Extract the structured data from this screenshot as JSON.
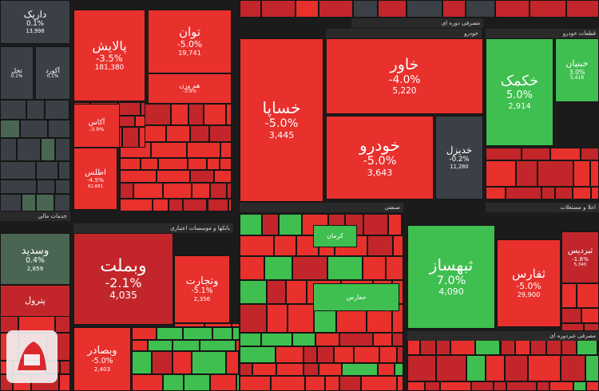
{
  "sections": [
    "مصرفی دوره ای",
    "خودرو",
    "قطعات خودرو",
    "خدمات مالی",
    "بانکها و موسسات اعتباری",
    "اعلا و مستغلات",
    "صنعتی",
    "مصرفی غیردوره ای"
  ],
  "tiles": [
    {
      "label": "داریک",
      "change": "0.1%",
      "price": "13,998"
    },
    {
      "label": "تخل",
      "change": "0.1%"
    },
    {
      "label": "آکورد",
      "change": "0.1%"
    },
    {
      "label": "پالایش",
      "change": "-3.5%",
      "price": "181,380"
    },
    {
      "label": "توان",
      "change": "-5.0%",
      "price": "19,741"
    },
    {
      "label": "هم وزن",
      "change": "-3.8%"
    },
    {
      "label": "آکاس",
      "change": "-3.9%"
    },
    {
      "label": "اطلس",
      "change": "-4.5%",
      "price": "62,681"
    },
    {
      "label": "خساپا",
      "change": "-5.0%",
      "price": "3,445"
    },
    {
      "label": "خاور",
      "change": "-4.0%",
      "price": "5,220"
    },
    {
      "label": "خودرو",
      "change": "-5.0%",
      "price": "3,643"
    },
    {
      "label": "خدیزل",
      "change": "-0.2%",
      "price": "11,280"
    },
    {
      "label": "خکمک",
      "change": "5.0%",
      "price": "2,914"
    },
    {
      "label": "خبنیان",
      "change": "3.0%",
      "price": "5,418"
    },
    {
      "label": "وسدید",
      "change": "0.4%",
      "price": "2,859"
    },
    {
      "label": "وبملت",
      "change": "-2.1%",
      "price": "4,035"
    },
    {
      "label": "وتجارت",
      "change": "-5.1%",
      "price": "2,356"
    },
    {
      "label": "وبصادر",
      "change": "-5.0%",
      "price": "2,403"
    },
    {
      "label": "پترول"
    },
    {
      "label": "ثبهساز",
      "change": "7.0%",
      "price": "4,090"
    },
    {
      "label": "ثفارس",
      "change": "-5.0%",
      "price": "29,900"
    },
    {
      "label": "ثبردیس",
      "change": "-1.8%",
      "price": "5,340"
    },
    {
      "label": "حفارس"
    },
    {
      "label": "کرمان"
    }
  ]
}
